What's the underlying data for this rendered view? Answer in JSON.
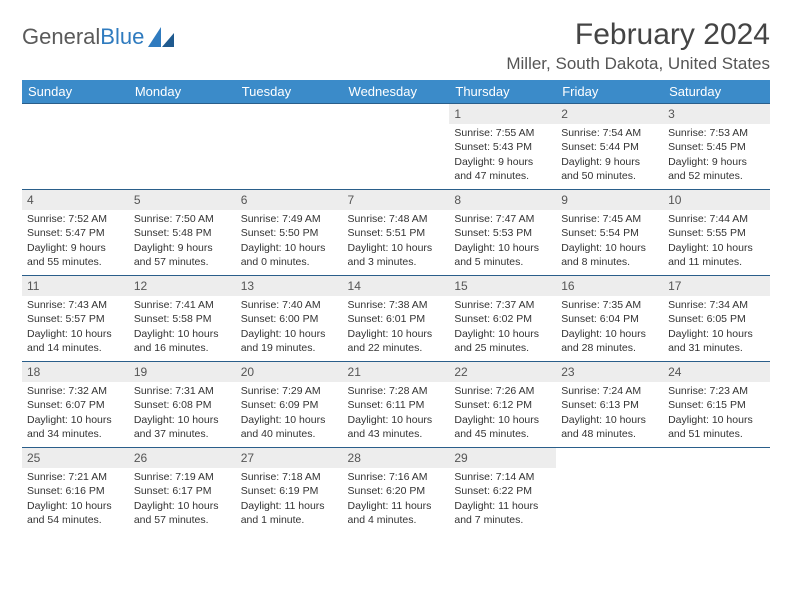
{
  "brand": {
    "part1": "General",
    "part2": "Blue"
  },
  "title": "February 2024",
  "location": "Miller, South Dakota, United States",
  "colors": {
    "header_bg": "#3b8bc9",
    "header_text": "#ffffff",
    "row_border": "#2a5e8a",
    "shade_bg": "#ededed",
    "body_text": "#333333",
    "brand_gray": "#5a5a5a",
    "brand_blue": "#2f7bbf"
  },
  "typography": {
    "title_fontsize": 30,
    "location_fontsize": 17,
    "dayheader_fontsize": 13,
    "cell_fontsize": 10.5
  },
  "day_headers": [
    "Sunday",
    "Monday",
    "Tuesday",
    "Wednesday",
    "Thursday",
    "Friday",
    "Saturday"
  ],
  "weeks": [
    [
      null,
      null,
      null,
      null,
      {
        "n": "1",
        "sr": "7:55 AM",
        "ss": "5:43 PM",
        "dl": "9 hours and 47 minutes."
      },
      {
        "n": "2",
        "sr": "7:54 AM",
        "ss": "5:44 PM",
        "dl": "9 hours and 50 minutes."
      },
      {
        "n": "3",
        "sr": "7:53 AM",
        "ss": "5:45 PM",
        "dl": "9 hours and 52 minutes."
      }
    ],
    [
      {
        "n": "4",
        "sr": "7:52 AM",
        "ss": "5:47 PM",
        "dl": "9 hours and 55 minutes."
      },
      {
        "n": "5",
        "sr": "7:50 AM",
        "ss": "5:48 PM",
        "dl": "9 hours and 57 minutes."
      },
      {
        "n": "6",
        "sr": "7:49 AM",
        "ss": "5:50 PM",
        "dl": "10 hours and 0 minutes."
      },
      {
        "n": "7",
        "sr": "7:48 AM",
        "ss": "5:51 PM",
        "dl": "10 hours and 3 minutes."
      },
      {
        "n": "8",
        "sr": "7:47 AM",
        "ss": "5:53 PM",
        "dl": "10 hours and 5 minutes."
      },
      {
        "n": "9",
        "sr": "7:45 AM",
        "ss": "5:54 PM",
        "dl": "10 hours and 8 minutes."
      },
      {
        "n": "10",
        "sr": "7:44 AM",
        "ss": "5:55 PM",
        "dl": "10 hours and 11 minutes."
      }
    ],
    [
      {
        "n": "11",
        "sr": "7:43 AM",
        "ss": "5:57 PM",
        "dl": "10 hours and 14 minutes."
      },
      {
        "n": "12",
        "sr": "7:41 AM",
        "ss": "5:58 PM",
        "dl": "10 hours and 16 minutes."
      },
      {
        "n": "13",
        "sr": "7:40 AM",
        "ss": "6:00 PM",
        "dl": "10 hours and 19 minutes."
      },
      {
        "n": "14",
        "sr": "7:38 AM",
        "ss": "6:01 PM",
        "dl": "10 hours and 22 minutes."
      },
      {
        "n": "15",
        "sr": "7:37 AM",
        "ss": "6:02 PM",
        "dl": "10 hours and 25 minutes."
      },
      {
        "n": "16",
        "sr": "7:35 AM",
        "ss": "6:04 PM",
        "dl": "10 hours and 28 minutes."
      },
      {
        "n": "17",
        "sr": "7:34 AM",
        "ss": "6:05 PM",
        "dl": "10 hours and 31 minutes."
      }
    ],
    [
      {
        "n": "18",
        "sr": "7:32 AM",
        "ss": "6:07 PM",
        "dl": "10 hours and 34 minutes."
      },
      {
        "n": "19",
        "sr": "7:31 AM",
        "ss": "6:08 PM",
        "dl": "10 hours and 37 minutes."
      },
      {
        "n": "20",
        "sr": "7:29 AM",
        "ss": "6:09 PM",
        "dl": "10 hours and 40 minutes."
      },
      {
        "n": "21",
        "sr": "7:28 AM",
        "ss": "6:11 PM",
        "dl": "10 hours and 43 minutes."
      },
      {
        "n": "22",
        "sr": "7:26 AM",
        "ss": "6:12 PM",
        "dl": "10 hours and 45 minutes."
      },
      {
        "n": "23",
        "sr": "7:24 AM",
        "ss": "6:13 PM",
        "dl": "10 hours and 48 minutes."
      },
      {
        "n": "24",
        "sr": "7:23 AM",
        "ss": "6:15 PM",
        "dl": "10 hours and 51 minutes."
      }
    ],
    [
      {
        "n": "25",
        "sr": "7:21 AM",
        "ss": "6:16 PM",
        "dl": "10 hours and 54 minutes."
      },
      {
        "n": "26",
        "sr": "7:19 AM",
        "ss": "6:17 PM",
        "dl": "10 hours and 57 minutes."
      },
      {
        "n": "27",
        "sr": "7:18 AM",
        "ss": "6:19 PM",
        "dl": "11 hours and 1 minute."
      },
      {
        "n": "28",
        "sr": "7:16 AM",
        "ss": "6:20 PM",
        "dl": "11 hours and 4 minutes."
      },
      {
        "n": "29",
        "sr": "7:14 AM",
        "ss": "6:22 PM",
        "dl": "11 hours and 7 minutes."
      },
      null,
      null
    ]
  ],
  "labels": {
    "sunrise": "Sunrise: ",
    "sunset": "Sunset: ",
    "daylight": "Daylight: "
  }
}
